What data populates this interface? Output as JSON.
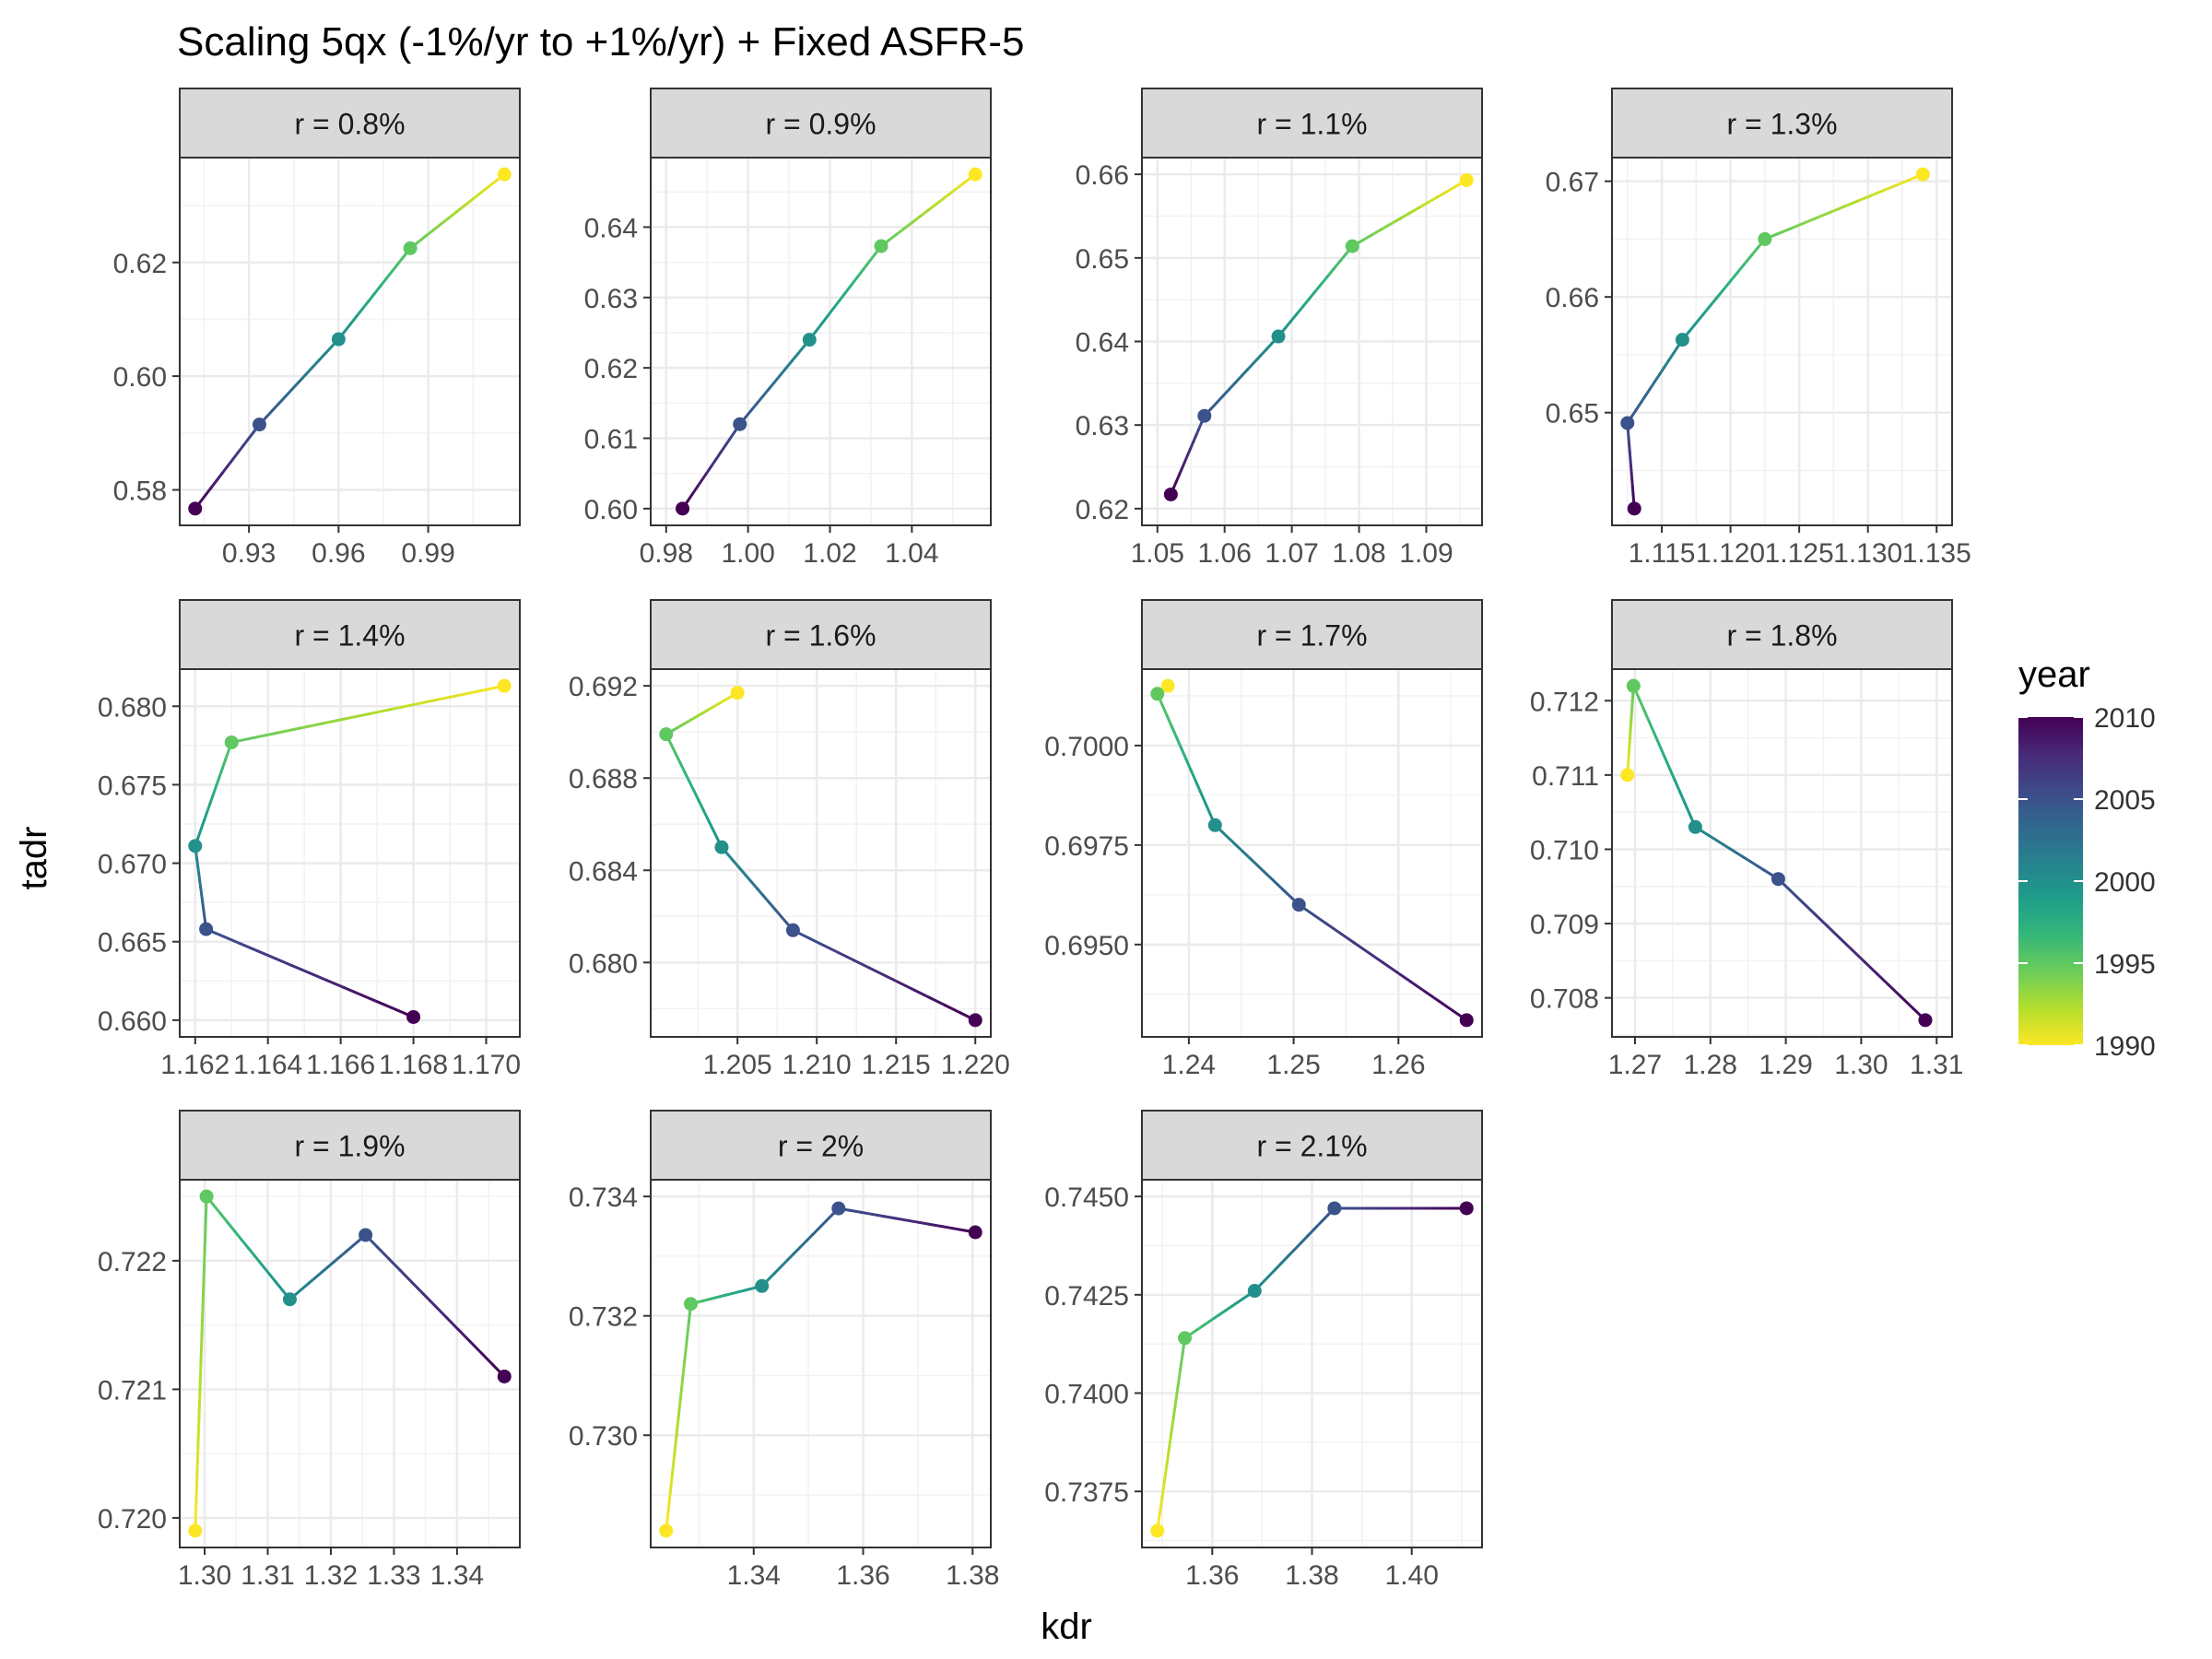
{
  "title": "Scaling 5qx (-1%/yr to +1%/yr) + Fixed ASFR-5",
  "xlabel": "kdr",
  "ylabel": "tadr",
  "legend": {
    "title": "year",
    "ticks": [
      "2010",
      "2005",
      "2000",
      "1995",
      "1990"
    ],
    "range": [
      1990,
      2010
    ],
    "placement": "right",
    "colors": [
      "#FDE725",
      "#B4DE2C",
      "#6DCD59",
      "#35B779",
      "#1F9E89",
      "#26828E",
      "#31688E",
      "#3E4A89",
      "#482878",
      "#440154"
    ]
  },
  "chart_data": {
    "type": "line",
    "years": [
      1990,
      1995,
      2000,
      2005,
      2010
    ],
    "grid": true,
    "facets": [
      {
        "strip": "r = 0.8%",
        "x": [
          1.0155,
          0.984,
          0.96,
          0.9335,
          0.912
        ],
        "y": [
          0.6355,
          0.6225,
          0.6065,
          0.5915,
          0.5767
        ],
        "xticks": [
          "0.93",
          "0.96",
          "0.99"
        ],
        "xtick_values": [
          0.93,
          0.96,
          0.99
        ],
        "yticks": [
          "0.58",
          "0.60",
          "0.62"
        ],
        "ytick_values": [
          0.58,
          0.6,
          0.62
        ]
      },
      {
        "strip": "r = 0.9%",
        "x": [
          1.0555,
          1.0325,
          1.015,
          0.998,
          0.984
        ],
        "y": [
          0.6475,
          0.6373,
          0.624,
          0.612,
          0.6
        ],
        "xticks": [
          "0.98",
          "1.00",
          "1.02",
          "1.04"
        ],
        "xtick_values": [
          0.98,
          1.0,
          1.02,
          1.04
        ],
        "yticks": [
          "0.60",
          "0.61",
          "0.62",
          "0.63",
          "0.64"
        ],
        "ytick_values": [
          0.6,
          0.61,
          0.62,
          0.63,
          0.64
        ]
      },
      {
        "strip": "r = 1.1%",
        "x": [
          1.096,
          1.079,
          1.068,
          1.057,
          1.052
        ],
        "y": [
          0.6593,
          0.6514,
          0.6406,
          0.6311,
          0.6217
        ],
        "xticks": [
          "1.05",
          "1.06",
          "1.07",
          "1.08",
          "1.09"
        ],
        "xtick_values": [
          1.05,
          1.06,
          1.07,
          1.08,
          1.09
        ],
        "yticks": [
          "0.62",
          "0.63",
          "0.64",
          "0.65",
          "0.66"
        ],
        "ytick_values": [
          0.62,
          0.63,
          0.64,
          0.65,
          0.66
        ]
      },
      {
        "strip": "r = 1.3%",
        "x": [
          1.134,
          1.1225,
          1.1165,
          1.1125,
          1.113
        ],
        "y": [
          0.6706,
          0.665,
          0.6563,
          0.6491,
          0.6417
        ],
        "xticks": [
          "1.115",
          "1.120",
          "1.125",
          "1.130",
          "1.135"
        ],
        "xtick_values": [
          1.115,
          1.12,
          1.125,
          1.13,
          1.135
        ],
        "yticks": [
          "0.65",
          "0.66",
          "0.67"
        ],
        "ytick_values": [
          0.65,
          0.66,
          0.67
        ]
      },
      {
        "strip": "r = 1.4%",
        "x": [
          1.1705,
          1.163,
          1.162,
          1.1623,
          1.168
        ],
        "y": [
          0.6813,
          0.6777,
          0.6711,
          0.6658,
          0.6602
        ],
        "xticks": [
          "1.162",
          "1.164",
          "1.166",
          "1.168",
          "1.170"
        ],
        "xtick_values": [
          1.162,
          1.164,
          1.166,
          1.168,
          1.17
        ],
        "yticks": [
          "0.660",
          "0.665",
          "0.670",
          "0.675",
          "0.680"
        ],
        "ytick_values": [
          0.66,
          0.665,
          0.67,
          0.675,
          0.68
        ]
      },
      {
        "strip": "r = 1.6%",
        "x": [
          1.205,
          1.2005,
          1.204,
          1.2085,
          1.22
        ],
        "y": [
          0.6917,
          0.6899,
          0.685,
          0.6814,
          0.6775
        ],
        "xticks": [
          "1.205",
          "1.210",
          "1.215",
          "1.220"
        ],
        "xtick_values": [
          1.205,
          1.21,
          1.215,
          1.22
        ],
        "yticks": [
          "0.680",
          "0.684",
          "0.688",
          "0.692"
        ],
        "ytick_values": [
          0.68,
          0.684,
          0.688,
          0.692
        ]
      },
      {
        "strip": "r = 1.7%",
        "x": [
          1.238,
          1.237,
          1.2425,
          1.2505,
          1.2665
        ],
        "y": [
          0.7015,
          0.7013,
          0.698,
          0.696,
          0.6931
        ],
        "xticks": [
          "1.24",
          "1.25",
          "1.26"
        ],
        "xtick_values": [
          1.24,
          1.25,
          1.26
        ],
        "yticks": [
          "0.6950",
          "0.6975",
          "0.7000"
        ],
        "ytick_values": [
          0.695,
          0.6975,
          0.7
        ]
      },
      {
        "strip": "r = 1.8%",
        "x": [
          1.269,
          1.2698,
          1.278,
          1.289,
          1.3085
        ],
        "y": [
          0.711,
          0.7122,
          0.7103,
          0.7096,
          0.7077
        ],
        "xticks": [
          "1.27",
          "1.28",
          "1.29",
          "1.30",
          "1.31"
        ],
        "xtick_values": [
          1.27,
          1.28,
          1.29,
          1.3,
          1.31
        ],
        "yticks": [
          "0.708",
          "0.709",
          "0.710",
          "0.711",
          "0.712"
        ],
        "ytick_values": [
          0.708,
          0.709,
          0.71,
          0.711,
          0.712
        ]
      },
      {
        "strip": "r = 1.9%",
        "x": [
          1.2985,
          1.3003,
          1.3135,
          1.3255,
          1.3475
        ],
        "y": [
          0.7199,
          0.7225,
          0.7217,
          0.7222,
          0.7211
        ],
        "xticks": [
          "1.30",
          "1.31",
          "1.32",
          "1.33",
          "1.34"
        ],
        "xtick_values": [
          1.3,
          1.31,
          1.32,
          1.33,
          1.34
        ],
        "yticks": [
          "0.720",
          "0.721",
          "0.722"
        ],
        "ytick_values": [
          0.72,
          0.721,
          0.722
        ]
      },
      {
        "strip": "r = 2%",
        "x": [
          1.324,
          1.3285,
          1.3415,
          1.3555,
          1.3805
        ],
        "y": [
          0.7284,
          0.7322,
          0.7325,
          0.7338,
          0.7334
        ],
        "xticks": [
          "1.34",
          "1.36",
          "1.38"
        ],
        "xtick_values": [
          1.34,
          1.36,
          1.38
        ],
        "yticks": [
          "0.730",
          "0.732",
          "0.734"
        ],
        "ytick_values": [
          0.73,
          0.732,
          0.734
        ]
      },
      {
        "strip": "r = 2.1%",
        "x": [
          1.349,
          1.3545,
          1.3685,
          1.3845,
          1.411
        ],
        "y": [
          0.7365,
          0.7414,
          0.7426,
          0.7447,
          0.7447
        ],
        "xticks": [
          "1.36",
          "1.38",
          "1.40"
        ],
        "xtick_values": [
          1.36,
          1.38,
          1.4
        ],
        "yticks": [
          "0.7375",
          "0.7400",
          "0.7425",
          "0.7450"
        ],
        "ytick_values": [
          0.7375,
          0.74,
          0.7425,
          0.745
        ]
      }
    ]
  }
}
